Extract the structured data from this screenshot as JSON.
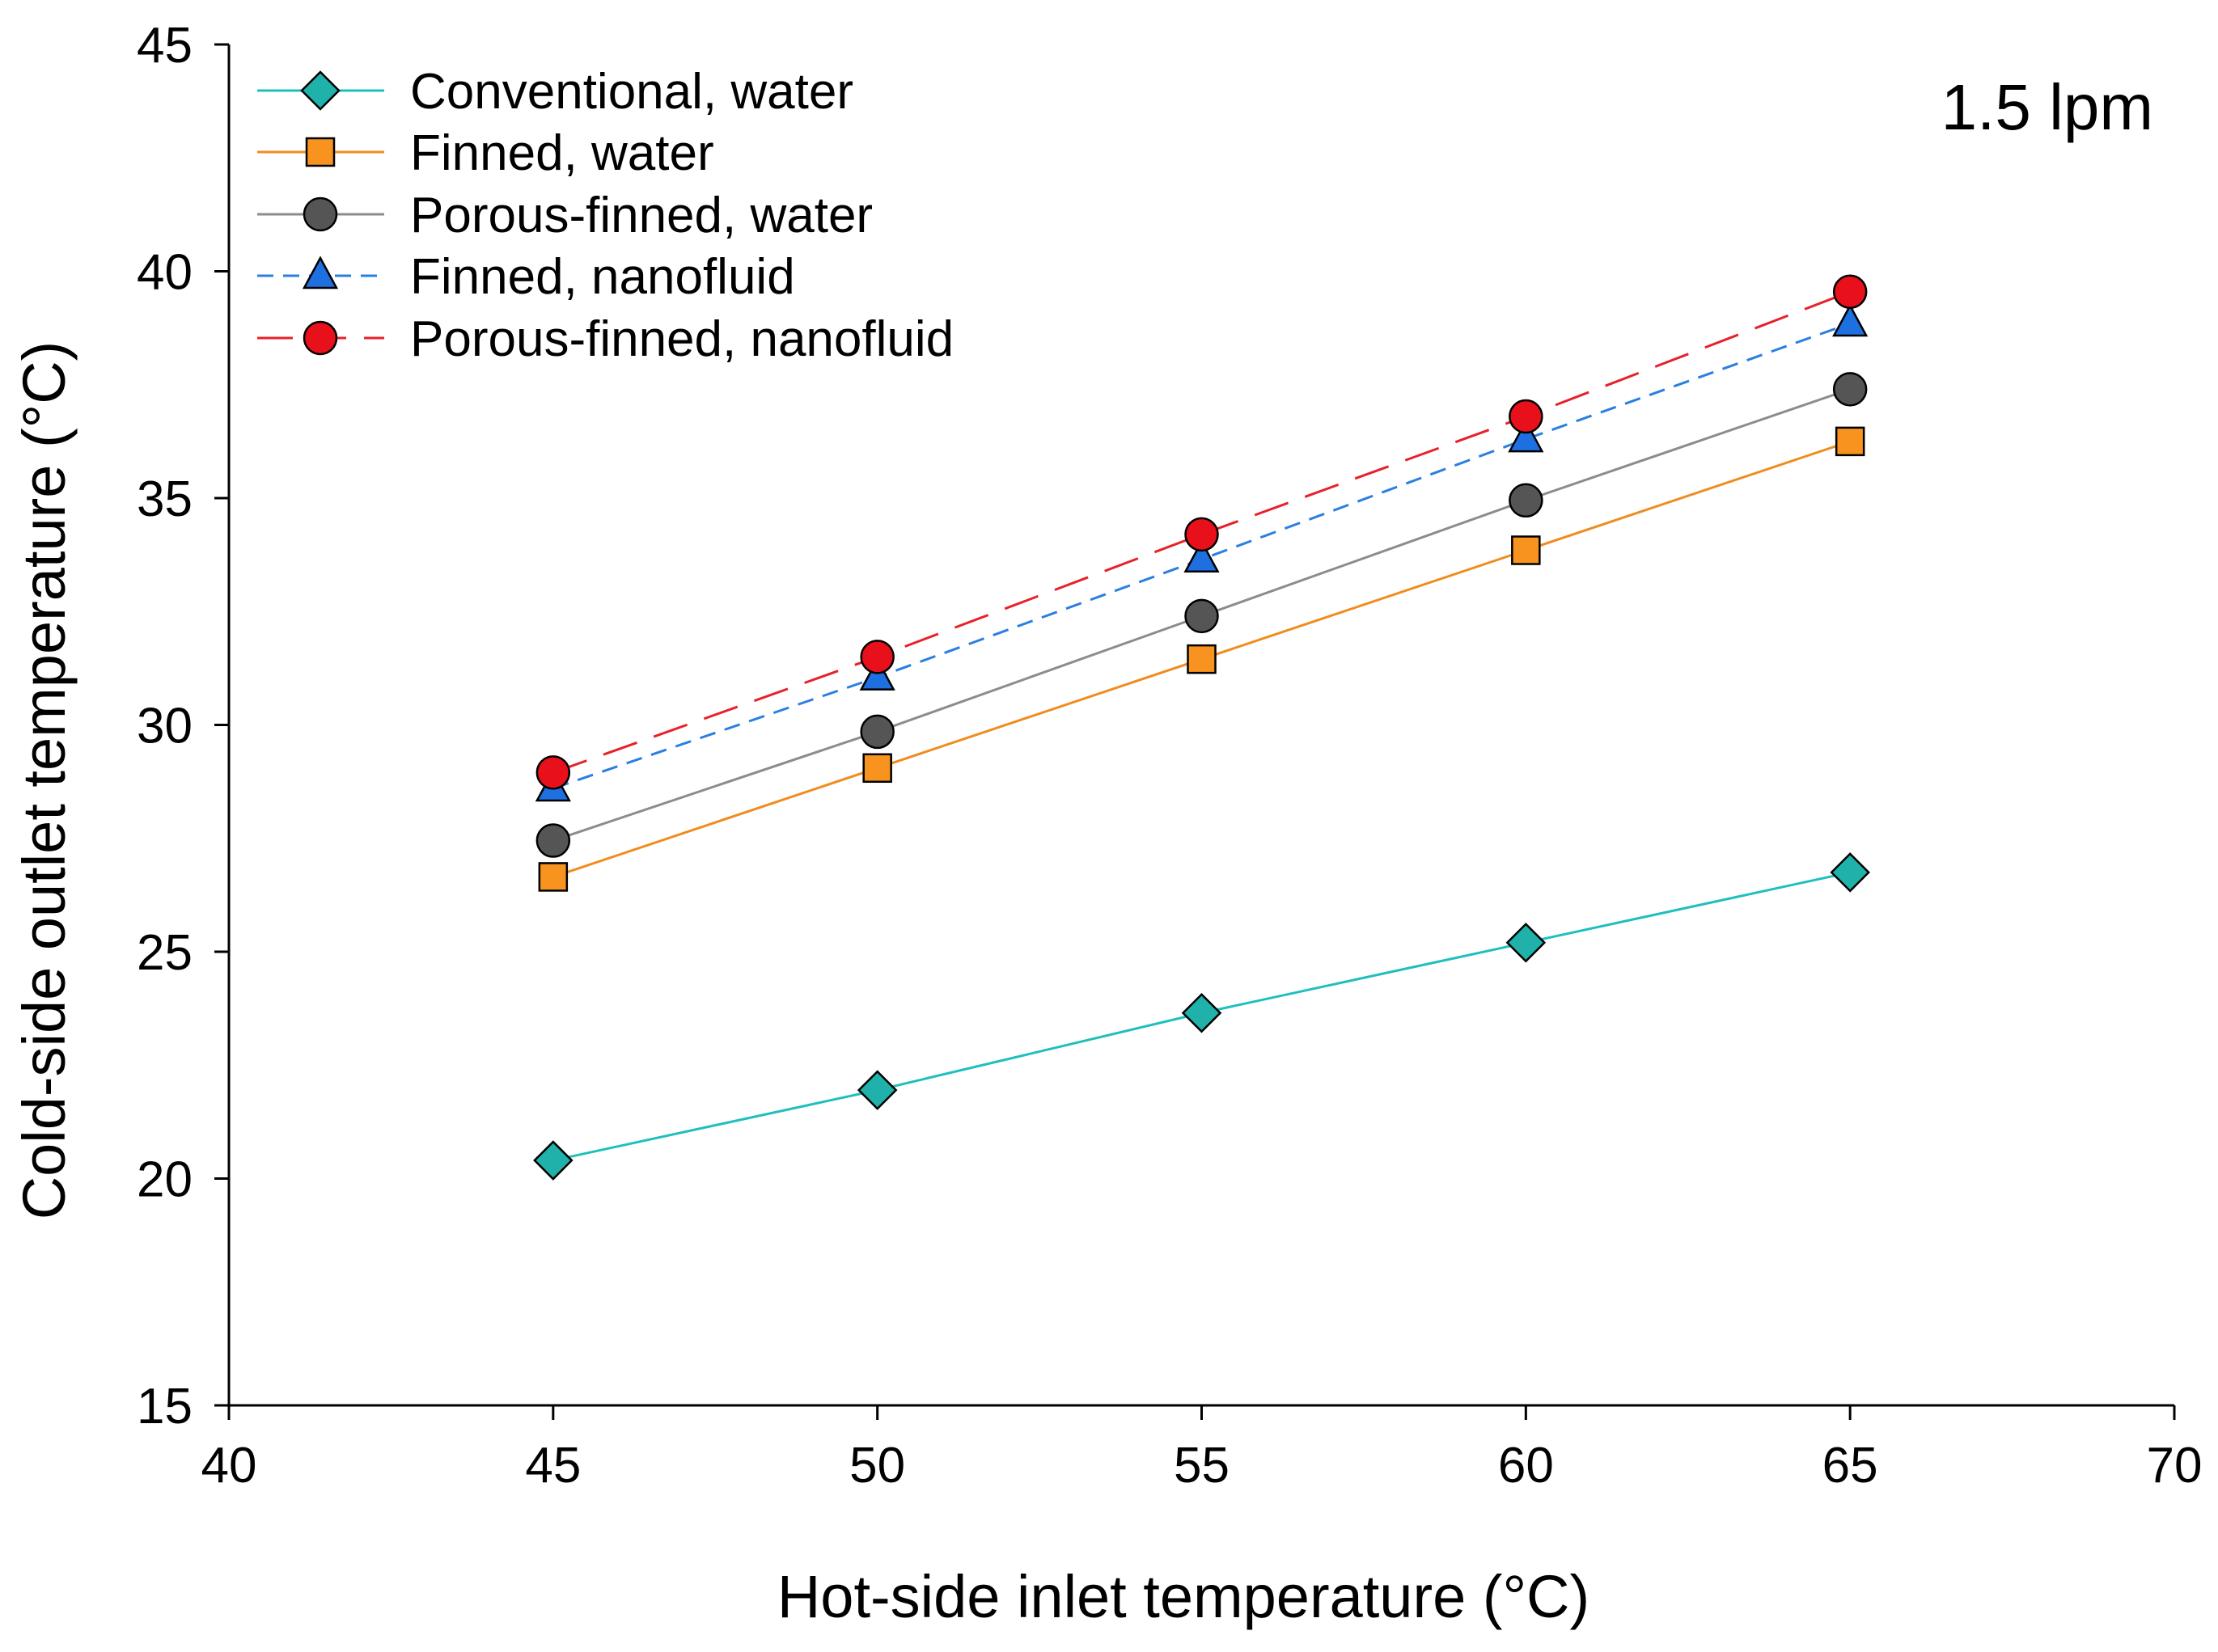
{
  "chart_data": {
    "type": "line",
    "title": "",
    "annotation": "1.5 lpm",
    "xlabel": "Hot-side inlet temperature (°C)",
    "ylabel": "Cold-side outlet temperature (°C)",
    "xlim": [
      40,
      70
    ],
    "ylim": [
      15,
      45
    ],
    "xticks": [
      40,
      45,
      50,
      55,
      60,
      65,
      70
    ],
    "yticks": [
      15,
      20,
      25,
      30,
      35,
      40,
      45
    ],
    "grid": false,
    "legend_position": "top-left",
    "x": [
      45,
      50,
      55,
      60,
      65
    ],
    "series": [
      {
        "name": "Conventional, water",
        "values": [
          20.4,
          21.95,
          23.65,
          25.2,
          26.75
        ],
        "color": "#1FBFBF",
        "marker": "diamond",
        "marker_color": "#20B2AA",
        "dash": "solid"
      },
      {
        "name": "Finned, water",
        "values": [
          26.65,
          29.05,
          31.45,
          33.85,
          36.25
        ],
        "color": "#F08C1E",
        "marker": "square",
        "marker_color": "#F7931E",
        "dash": "solid"
      },
      {
        "name": "Porous-finned, water",
        "values": [
          27.45,
          29.85,
          32.4,
          34.95,
          37.4
        ],
        "color": "#8C8C8C",
        "marker": "circle",
        "marker_color": "#555555",
        "dash": "solid"
      },
      {
        "name": "Finned, nanofluid",
        "values": [
          28.6,
          31.05,
          33.65,
          36.3,
          38.85
        ],
        "color": "#2A7FE0",
        "marker": "triangle",
        "marker_color": "#1E6FE0",
        "dash": "dashed"
      },
      {
        "name": "Porous-finned, nanofluid",
        "values": [
          28.95,
          31.5,
          34.2,
          36.8,
          39.55
        ],
        "color": "#E8202A",
        "marker": "circle",
        "marker_color": "#E8101A",
        "dash": "longdash"
      }
    ]
  }
}
